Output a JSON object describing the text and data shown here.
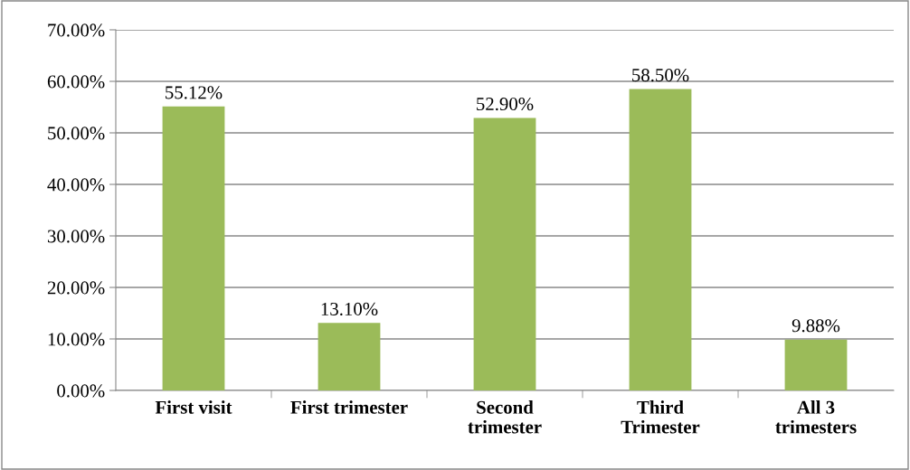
{
  "chart_data": {
    "type": "bar",
    "categories": [
      "First visit",
      "First trimester",
      "Second\ntrimester",
      "Third\nTrimester",
      "All 3\ntrimesters"
    ],
    "values": [
      55.12,
      13.1,
      52.9,
      58.5,
      9.88
    ],
    "value_labels": [
      "55.12%",
      "13.10%",
      "52.90%",
      "58.50%",
      "9.88%"
    ],
    "color": "#9bbb59",
    "ylim": [
      0,
      70
    ],
    "yticks": [
      {
        "value": 0,
        "label": "0.00%"
      },
      {
        "value": 10,
        "label": "10.00%"
      },
      {
        "value": 20,
        "label": "20.00%"
      },
      {
        "value": 30,
        "label": "30.00%"
      },
      {
        "value": 40,
        "label": "40.00%"
      },
      {
        "value": 50,
        "label": "50.00%"
      },
      {
        "value": 60,
        "label": "60.00%"
      },
      {
        "value": 70,
        "label": "70.00%"
      }
    ],
    "grid": "y",
    "legend": false
  }
}
